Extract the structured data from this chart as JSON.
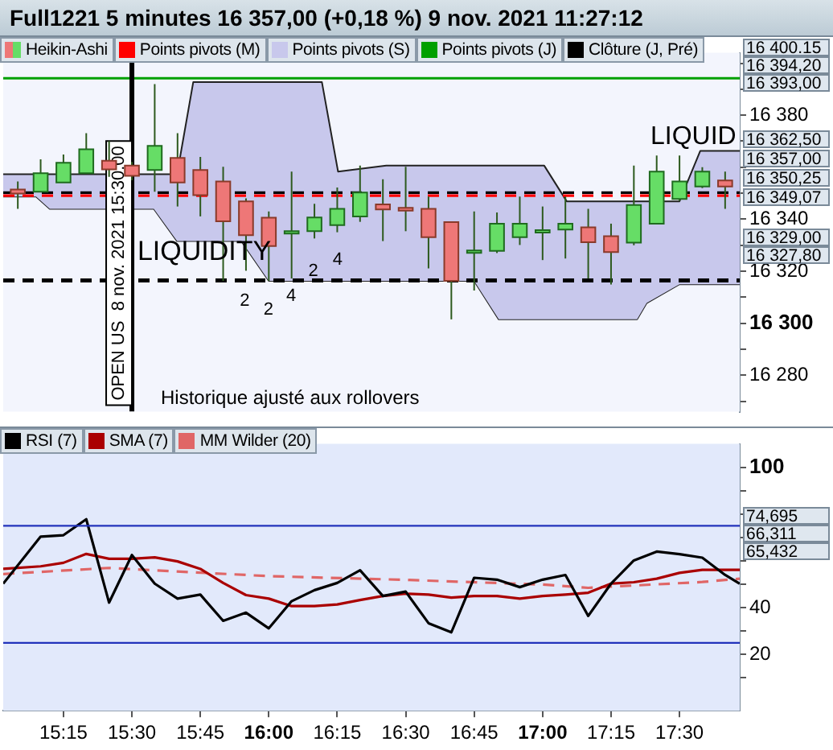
{
  "chart_data": [
    {
      "type": "candlestick",
      "title": "Full1221 5 minutes 16 357,00 (+0,18 %) 9 nov. 2021 11:27:12",
      "legend": "top left",
      "tick_labels": "y",
      "xlim": [
        15.03,
        17.72
      ],
      "ylim": [
        16266,
        16404
      ],
      "yticks": [
        {
          "value": 16270,
          "label": null
        },
        {
          "value": 16280,
          "label": "16 280"
        },
        {
          "value": 16290,
          "label": null
        },
        {
          "value": 16300,
          "label": "16 300"
        },
        {
          "value": 16310,
          "label": null
        },
        {
          "value": 16320,
          "label": "16 320"
        },
        {
          "value": 16330,
          "label": null
        },
        {
          "value": 16340,
          "label": "16 340"
        },
        {
          "value": 16350,
          "label": null
        },
        {
          "value": 16360,
          "label": null
        },
        {
          "value": 16370,
          "label": null
        },
        {
          "value": 16380,
          "label": "16 380"
        },
        {
          "value": 16390,
          "label": null
        },
        {
          "value": 16400,
          "label": null
        }
      ],
      "series": [
        {
          "name": "Heikin-Ashi",
          "x": [
            15.0833,
            15.1667,
            15.25,
            15.3333,
            15.4167,
            15.5,
            15.5833,
            15.6667,
            15.75,
            15.8333,
            15.9167,
            16,
            16.0833,
            16.1667,
            16.25,
            16.3333,
            16.4167,
            16.5,
            16.5833,
            16.6667,
            16.75,
            16.8333,
            16.9167,
            17,
            17.0833,
            17.1667,
            17.25,
            17.3333,
            17.4167,
            17.5,
            17.5833,
            17.6667
          ],
          "ohlc": [
            [
              16351.4,
              16354.5,
              16344,
              16349.9
            ],
            [
              16350.6,
              16363,
              16350.6,
              16357.7
            ],
            [
              16354.1,
              16364.9,
              16354.1,
              16361.7
            ],
            [
              16357.7,
              16373.1,
              16357.7,
              16366.9
            ],
            [
              16362.5,
              16370.1,
              16356.3,
              16359.2
            ],
            [
              16360.6,
              16362,
              16355,
              16356.7
            ],
            [
              16358.9,
              16392,
              16350.6,
              16368.2
            ],
            [
              16363.6,
              16373.1,
              16344.9,
              16354.1
            ],
            [
              16358.9,
              16364,
              16341.1,
              16349.3
            ],
            [
              16354.5,
              16360.2,
              16316.3,
              16339.2
            ],
            [
              16346.9,
              16348,
              16320.2,
              16333.9
            ],
            [
              16340.6,
              16343,
              16316.3,
              16329.7
            ],
            [
              16335,
              16358.3,
              16317.2,
              16335.4
            ],
            [
              16335.4,
              16345.9,
              16332.6,
              16340.7
            ],
            [
              16337.7,
              16352.2,
              16335,
              16344
            ],
            [
              16341.1,
              16360.6,
              16339,
              16350.3
            ],
            [
              16345.7,
              16355.4,
              16331.6,
              16343.8
            ],
            [
              16344.4,
              16360.2,
              16335.4,
              16343.3
            ],
            [
              16344,
              16348.7,
              16321.1,
              16333.1
            ],
            [
              16338.9,
              16338.9,
              16301.5,
              16316.3
            ],
            [
              16327.8,
              16343,
              16312.6,
              16328
            ],
            [
              16327.8,
              16342.6,
              16327,
              16338.3
            ],
            [
              16333.1,
              16348.7,
              16330.1,
              16338.3
            ],
            [
              16335.7,
              16344.9,
              16324.3,
              16335.8
            ],
            [
              16336,
              16348.7,
              16324.9,
              16338.3
            ],
            [
              16336.9,
              16344,
              16317.2,
              16331.2
            ],
            [
              16333.5,
              16338.3,
              16314.9,
              16327.4
            ],
            [
              16331,
              16360.6,
              16330,
              16345.5
            ],
            [
              16338.3,
              16364.5,
              16338.3,
              16358.3
            ],
            [
              16347.8,
              16364.5,
              16347,
              16354.5
            ],
            [
              16352.6,
              16360,
              16352,
              16358.3
            ],
            [
              16354.9,
              16358.3,
              16344,
              16352.6
            ]
          ],
          "colors": [
            "#ee7777",
            "#66dd66",
            "#66dd66",
            "#66dd66",
            "#ee7777",
            "#ee7777",
            "#66dd66",
            "#ee7777",
            "#ee7777",
            "#ee7777",
            "#ee7777",
            "#ee7777",
            "#66dd66",
            "#66dd66",
            "#66dd66",
            "#66dd66",
            "#ee7777",
            "#ee7777",
            "#ee7777",
            "#ee7777",
            "#66dd66",
            "#66dd66",
            "#66dd66",
            "#66dd66",
            "#66dd66",
            "#ee7777",
            "#ee7777",
            "#66dd66",
            "#66dd66",
            "#66dd66",
            "#66dd66",
            "#ee7777"
          ]
        },
        {
          "name": "Points pivots (M)",
          "type": "line",
          "color": "#ff0000",
          "line_style": "dashed",
          "x": [
            15.03,
            17.72
          ],
          "values": [
            16349.07,
            16349.07
          ]
        },
        {
          "name": "Points pivots (S)",
          "type": "area",
          "color": "#c8c8ec",
          "x": [
            15.03,
            15.15,
            15.2,
            15.58,
            15.665,
            15.724,
            15.9,
            16.0,
            16.194,
            16.253,
            16.429,
            16.75,
            16.84,
            17.006,
            17.088,
            17.345,
            17.38,
            17.5,
            17.576,
            17.72
          ],
          "values": [
            16357.3,
            16357.3,
            16357.3,
            16357.3,
            16357.3,
            16392.7,
            16392.7,
            16392.7,
            16392.7,
            16358.3,
            16360.6,
            16360.6,
            16360.6,
            16360.6,
            16346.9,
            16346.9,
            16346.9,
            16346.9,
            16366.3,
            16366.3
          ]
        },
        {
          "type": "line",
          "color": "#222222",
          "x": [
            15.03,
            15.15,
            15.2,
            15.58,
            15.665,
            15.724,
            15.9,
            16.0,
            16.194,
            16.253,
            16.429,
            16.75,
            16.84,
            17.006,
            17.088,
            17.345,
            17.38,
            17.5,
            17.576,
            17.72
          ],
          "values": [
            16348.7,
            16348.7,
            16344,
            16344,
            16331.6,
            16331.6,
            16331.6,
            16316.3,
            16316.3,
            16316.3,
            16316.3,
            16316.3,
            16301.5,
            16301.5,
            16301.5,
            16301.5,
            16307.8,
            16315,
            16315,
            16315
          ]
        },
        {
          "name": "Points pivots (J)",
          "type": "line",
          "color": "#00a000",
          "x": [
            15.03,
            17.72
          ],
          "values": [
            16394.2,
            16394.2
          ]
        },
        {
          "name": "Clôture (J, Pré)",
          "type": "line",
          "color": "#000000",
          "line_style": "dashed",
          "x": [
            15.03,
            17.72
          ],
          "values": [
            16350.25,
            16350.25
          ]
        }
      ],
      "ref_lines": [
        {
          "axis": "x",
          "value": 15.5,
          "label": "OPEN US  8 nov. 2021 15:30:00",
          "color": "#000000",
          "line_style": "solid"
        },
        {
          "axis": "y",
          "value": 16316.5,
          "color": "#000000",
          "line_style": "dashed"
        }
      ],
      "annotations": [
        "Historique ajusté aux rollovers",
        "LIQUIDITY",
        "LIQUID",
        "2",
        "2",
        "4",
        "2",
        "4",
        "16 400.15",
        "16 394,20",
        "16 393,00",
        "16 362,50",
        "16 357,00",
        "16 350,25",
        "16 349,07",
        "16 329,00",
        "16 327,80"
      ]
    },
    {
      "type": "line",
      "legend": "top left",
      "xlim": [
        15.03,
        17.72
      ],
      "ylim": [
        -4,
        110
      ],
      "x": [
        15.03,
        15.1667,
        15.25,
        15.3333,
        15.4167,
        15.5,
        15.5833,
        15.6667,
        15.75,
        15.8333,
        15.9167,
        16,
        16.0833,
        16.1667,
        16.25,
        16.3333,
        16.4167,
        16.5,
        16.5833,
        16.6667,
        16.75,
        16.8333,
        16.9167,
        17,
        17.0833,
        17.1667,
        17.25,
        17.3333,
        17.4167,
        17.5,
        17.5833,
        17.6667,
        17.72
      ],
      "xticks": [
        {
          "value": 15.25,
          "label": "15:15"
        },
        {
          "value": 15.5,
          "label": "15:30"
        },
        {
          "value": 15.75,
          "label": "15:45"
        },
        {
          "value": 16,
          "label": "16:00"
        },
        {
          "value": 16.25,
          "label": "16:15"
        },
        {
          "value": 16.5,
          "label": "16:30"
        },
        {
          "value": 16.75,
          "label": "16:45"
        },
        {
          "value": 17,
          "label": "17:00"
        },
        {
          "value": 17.25,
          "label": "17:15"
        },
        {
          "value": 17.5,
          "label": "17:30"
        }
      ],
      "yticks": [
        {
          "value": 10,
          "label": null
        },
        20,
        {
          "value": 30,
          "label": null
        },
        40,
        {
          "value": 50,
          "label": null
        },
        {
          "value": 60,
          "label": null
        },
        {
          "value": 70,
          "label": null
        },
        {
          "value": 80,
          "label": null
        },
        {
          "value": 90,
          "label": null
        },
        100
      ],
      "series": [
        {
          "name": "RSI (7)",
          "color": "#000000",
          "values": [
            50.3,
            70.4,
            71.0,
            77.8,
            42.2,
            62.5,
            50.3,
            43.9,
            45.6,
            34.4,
            37.9,
            31.2,
            42.8,
            47.5,
            50.6,
            56.0,
            45.0,
            46.9,
            33.4,
            29.5,
            52.8,
            52.0,
            48.8,
            52.0,
            54.0,
            36.5,
            50.3,
            60.2,
            64.0,
            62.9,
            61.4,
            54.0,
            50.3
          ]
        },
        {
          "name": "SMA (7)",
          "color": "#aa0000",
          "values": [
            56.6,
            57.7,
            59.2,
            63.0,
            60.9,
            60.9,
            61.5,
            59.8,
            56.6,
            50.6,
            45.4,
            43.9,
            40.7,
            40.7,
            41.4,
            43.3,
            45.0,
            46.0,
            45.6,
            44.3,
            45.0,
            45.0,
            43.9,
            45.0,
            45.6,
            46.4,
            50.3,
            50.9,
            52.4,
            54.9,
            56.2,
            56.2,
            56.2
          ]
        },
        {
          "name": "MM Wilder (20)",
          "color": "#e06666",
          "line_style": "dashed",
          "x": [
            15.03,
            15.4167,
            16,
            16.5,
            17,
            17.1667,
            17.5833,
            17.72
          ],
          "values": [
            54.4,
            57,
            53.5,
            51.9,
            49.9,
            48.5,
            51,
            52.4
          ]
        }
      ],
      "ref_lines": [
        {
          "axis": "y",
          "value": 75,
          "color": "#2233bb",
          "line_style": "solid"
        },
        {
          "axis": "y",
          "value": 25,
          "color": "#2233bb",
          "line_style": "solid"
        }
      ],
      "annotations": [
        "74,695",
        "66,311",
        "65,432"
      ]
    }
  ]
}
